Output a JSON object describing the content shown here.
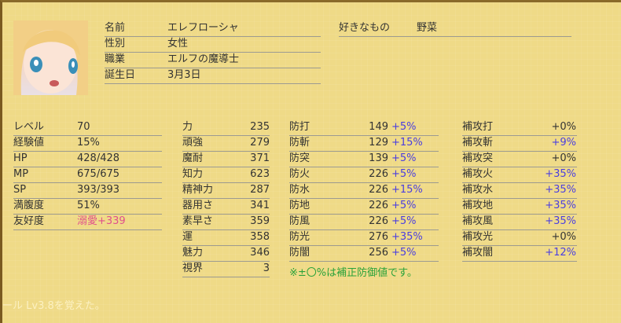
{
  "profile": {
    "rows": [
      {
        "label": "名前",
        "value": "エレフローシャ"
      },
      {
        "label": "性別",
        "value": "女性"
      },
      {
        "label": "職業",
        "value": "エルフの魔導士"
      },
      {
        "label": "誕生日",
        "value": "3月3日"
      }
    ],
    "favorite_label": "好きなもの",
    "favorite_value": "野菜"
  },
  "basic": [
    {
      "label": "レベル",
      "value": "70"
    },
    {
      "label": "経験値",
      "value": "15%"
    },
    {
      "label": "HP",
      "value": "428/428"
    },
    {
      "label": "MP",
      "value": "675/675"
    },
    {
      "label": "SP",
      "value": "393/393"
    },
    {
      "label": "満腹度",
      "value": "51%"
    },
    {
      "label": "友好度",
      "value": "溺愛+339"
    }
  ],
  "attributes": [
    {
      "label": "力",
      "value": "235"
    },
    {
      "label": "頑強",
      "value": "279"
    },
    {
      "label": "魔耐",
      "value": "371"
    },
    {
      "label": "知力",
      "value": "623"
    },
    {
      "label": "精神力",
      "value": "287"
    },
    {
      "label": "器用さ",
      "value": "341"
    },
    {
      "label": "素早さ",
      "value": "359"
    },
    {
      "label": "運",
      "value": "358"
    },
    {
      "label": "魅力",
      "value": "346"
    },
    {
      "label": "視界",
      "value": "3"
    }
  ],
  "defense": [
    {
      "label": "防打",
      "value": "149",
      "bonus": "+5%"
    },
    {
      "label": "防斬",
      "value": "129",
      "bonus": "+15%"
    },
    {
      "label": "防突",
      "value": "139",
      "bonus": "+5%"
    },
    {
      "label": "防火",
      "value": "226",
      "bonus": "+5%"
    },
    {
      "label": "防水",
      "value": "226",
      "bonus": "+15%"
    },
    {
      "label": "防地",
      "value": "226",
      "bonus": "+5%"
    },
    {
      "label": "防風",
      "value": "226",
      "bonus": "+5%"
    },
    {
      "label": "防光",
      "value": "276",
      "bonus": "+35%"
    },
    {
      "label": "防闇",
      "value": "256",
      "bonus": "+5%"
    }
  ],
  "attack_bonus": [
    {
      "label": "補攻打",
      "value": "+0%"
    },
    {
      "label": "補攻斬",
      "value": "+9%"
    },
    {
      "label": "補攻突",
      "value": "+0%"
    },
    {
      "label": "補攻火",
      "value": "+35%"
    },
    {
      "label": "補攻水",
      "value": "+35%"
    },
    {
      "label": "補攻地",
      "value": "+35%"
    },
    {
      "label": "補攻風",
      "value": "+35%"
    },
    {
      "label": "補攻光",
      "value": "+0%"
    },
    {
      "label": "補攻闇",
      "value": "+12%"
    }
  ],
  "note": "※±〇%は補正防御値です。",
  "log_message": "ール Lv3.8を覚えた。",
  "colors": {
    "bonus": "#4a3ee0",
    "affection": "#e0508c",
    "note": "#2aa23a",
    "background": "#efda87"
  }
}
